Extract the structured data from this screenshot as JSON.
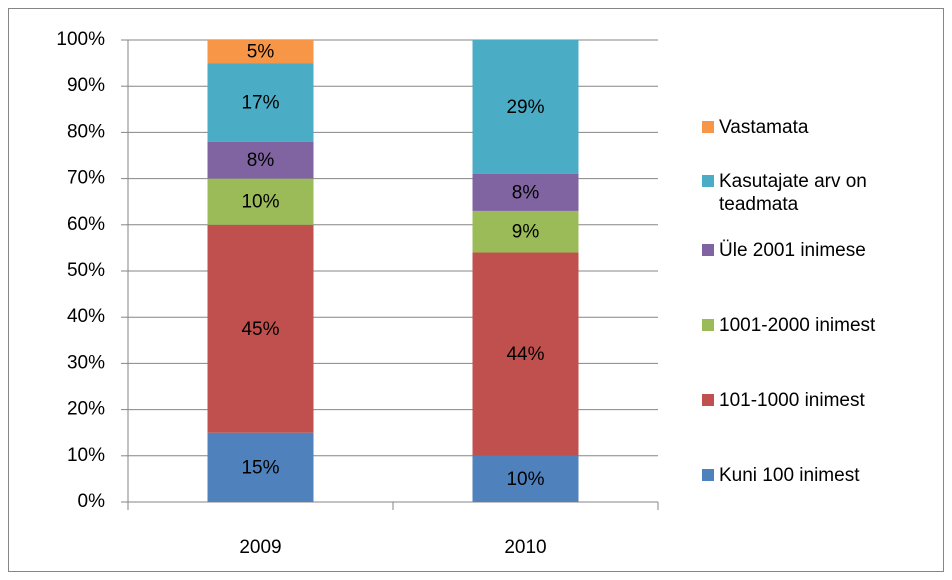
{
  "chart_data": {
    "type": "stacked-bar",
    "categories": [
      "2009",
      "2010"
    ],
    "series": [
      {
        "name": "Kuni 100 inimest",
        "color": "#4f81bd",
        "values": [
          15,
          10
        ],
        "value_labels": [
          "15%",
          "10%"
        ]
      },
      {
        "name": "101-1000 inimest",
        "color": "#c0504d",
        "values": [
          45,
          44
        ],
        "value_labels": [
          "45%",
          "44%"
        ]
      },
      {
        "name": "1001-2000 inimest",
        "color": "#9bbb59",
        "values": [
          10,
          9
        ],
        "value_labels": [
          "10%",
          "9%"
        ]
      },
      {
        "name": "Üle 2001 inimese",
        "color": "#8064a2",
        "values": [
          8,
          8
        ],
        "value_labels": [
          "8%",
          "8%"
        ]
      },
      {
        "name": "Kasutajate arv on teadmata",
        "color": "#4bacc6",
        "values": [
          17,
          29
        ],
        "value_labels": [
          "17%",
          "29%"
        ]
      },
      {
        "name": "Vastamata",
        "color": "#f79646",
        "values": [
          5,
          0
        ],
        "value_labels": [
          "5%",
          null
        ]
      }
    ],
    "ylim": [
      0,
      100
    ],
    "yticks": [
      {
        "value": 0,
        "label": "0%"
      },
      {
        "value": 10,
        "label": "10%"
      },
      {
        "value": 20,
        "label": "20%"
      },
      {
        "value": 30,
        "label": "30%"
      },
      {
        "value": 40,
        "label": "40%"
      },
      {
        "value": 50,
        "label": "50%"
      },
      {
        "value": 60,
        "label": "60%"
      },
      {
        "value": 70,
        "label": "70%"
      },
      {
        "value": 80,
        "label": "80%"
      },
      {
        "value": 90,
        "label": "90%"
      },
      {
        "value": 100,
        "label": "100%"
      }
    ],
    "grid": true,
    "legend": "right"
  }
}
